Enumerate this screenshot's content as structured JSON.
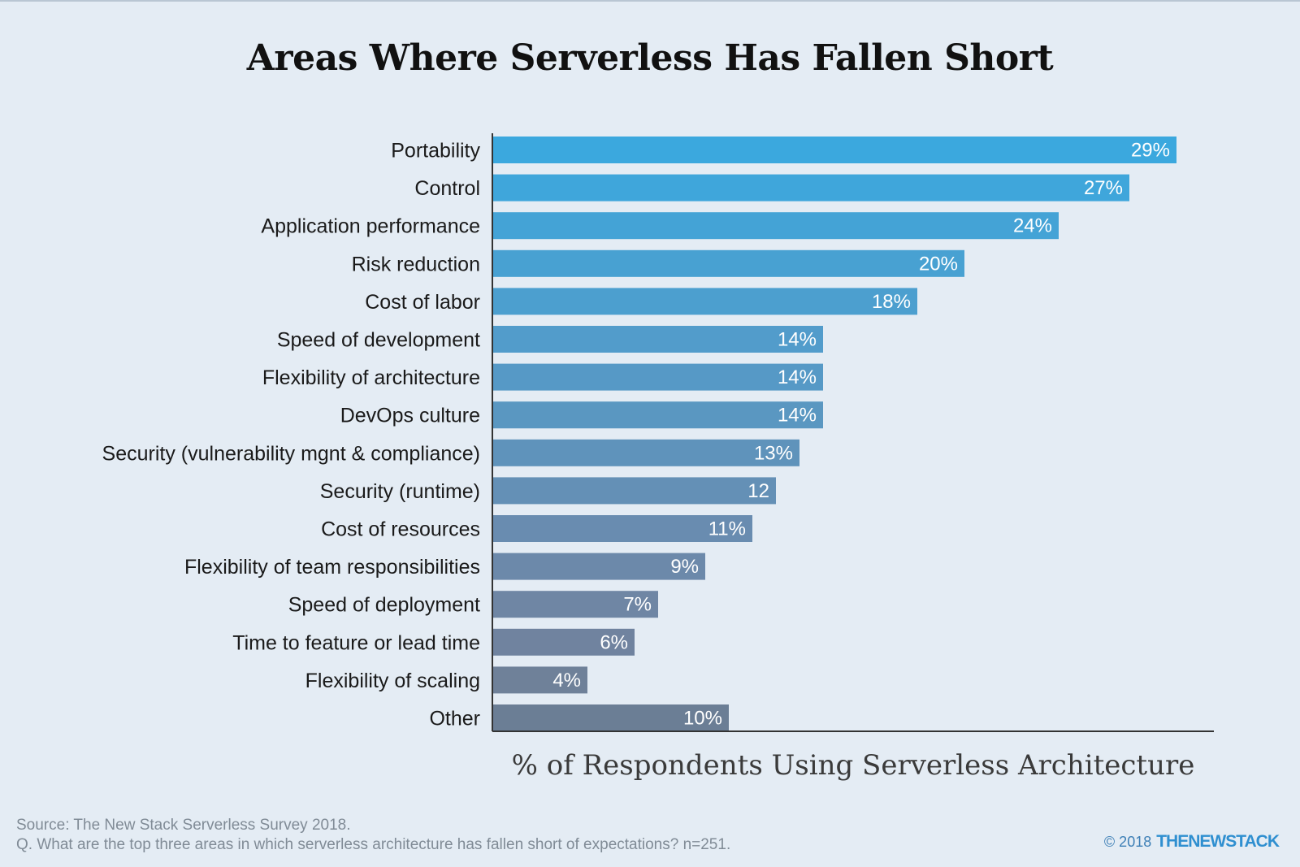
{
  "chart_data": {
    "type": "bar",
    "orientation": "horizontal",
    "title": "Areas Where Serverless Has Fallen Short",
    "xlabel": "% of Respondents Using Serverless Architecture",
    "ylabel": "",
    "xlim": [
      0,
      30
    ],
    "grid": false,
    "categories": [
      "Portability",
      "Control",
      "Application performance",
      "Risk reduction",
      "Cost of labor",
      "Speed of development",
      "Flexibility of architecture",
      "DevOps culture",
      "Security (vulnerability mgnt & compliance)",
      "Security (runtime)",
      "Cost of resources",
      "Flexibility of team responsibilities",
      "Speed of deployment",
      "Time to feature or lead time",
      "Flexibility of scaling",
      "Other"
    ],
    "values": [
      29,
      27,
      24,
      20,
      18,
      14,
      14,
      14,
      13,
      12,
      11,
      9,
      7,
      6,
      4,
      10
    ],
    "value_labels": [
      "29%",
      "27%",
      "24%",
      "20%",
      "18%",
      "14%",
      "14%",
      "14%",
      "13%",
      "12",
      "11%",
      "9%",
      "7%",
      "6%",
      "4%",
      "10%"
    ],
    "colors": [
      "#3ba8de",
      "#3fa6db",
      "#44a3d6",
      "#48a1d2",
      "#4c9fcf",
      "#529ccb",
      "#5699c6",
      "#5a97c1",
      "#5f93bb",
      "#6490b6",
      "#698cb0",
      "#6c89aa",
      "#6f86a4",
      "#70839f",
      "#6f8199",
      "#6b7e95"
    ]
  },
  "footer": {
    "source": "Source: The New Stack Serverless Survey 2018.",
    "question": "Q. What are the top three areas in which serverless architecture has fallen short of expectations? n=251.",
    "copyright": "© 2018",
    "brand": "THENEWSTACK"
  }
}
